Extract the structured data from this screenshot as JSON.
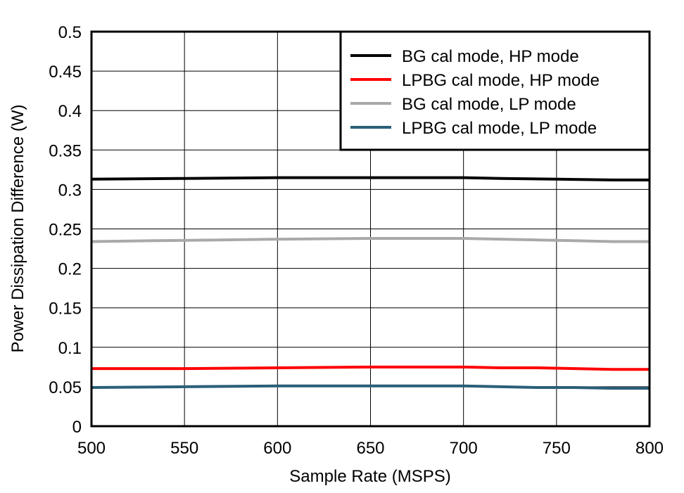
{
  "chart_data": {
    "type": "line",
    "title": "",
    "xlabel": "Sample Rate (MSPS)",
    "ylabel": "Power Dissipation Difference (W)",
    "xlim": [
      500,
      800
    ],
    "ylim": [
      0,
      0.5
    ],
    "xticks": [
      "500",
      "550",
      "600",
      "650",
      "700",
      "750",
      "800"
    ],
    "yticks": [
      "0",
      "0.05",
      "0.1",
      "0.15",
      "0.2",
      "0.25",
      "0.3",
      "0.35",
      "0.4",
      "0.45",
      "0.5"
    ],
    "grid": true,
    "legend_position": "top-right",
    "series": [
      {
        "name": "BG cal mode, HP mode",
        "color": "#000000",
        "x": [
          500,
          550,
          600,
          650,
          700,
          720,
          750,
          780,
          800
        ],
        "y": [
          0.313,
          0.314,
          0.315,
          0.315,
          0.315,
          0.314,
          0.313,
          0.312,
          0.312
        ]
      },
      {
        "name": "LPBG cal mode, HP mode",
        "color": "#ff0000",
        "x": [
          500,
          550,
          600,
          650,
          700,
          720,
          740,
          760,
          780,
          800
        ],
        "y": [
          0.073,
          0.073,
          0.074,
          0.075,
          0.075,
          0.074,
          0.074,
          0.073,
          0.072,
          0.072
        ]
      },
      {
        "name": "BG cal mode, LP mode",
        "color": "#a9a9a9",
        "x": [
          500,
          533,
          567,
          600,
          650,
          700,
          720,
          740,
          760,
          780,
          800
        ],
        "y": [
          0.234,
          0.235,
          0.236,
          0.237,
          0.238,
          0.238,
          0.237,
          0.236,
          0.235,
          0.234,
          0.234
        ]
      },
      {
        "name": "LPBG cal mode, LP mode",
        "color": "#2a5f78",
        "x": [
          500,
          550,
          600,
          650,
          700,
          720,
          740,
          760,
          780,
          800
        ],
        "y": [
          0.049,
          0.05,
          0.051,
          0.051,
          0.051,
          0.05,
          0.049,
          0.049,
          0.048,
          0.048
        ]
      }
    ]
  }
}
